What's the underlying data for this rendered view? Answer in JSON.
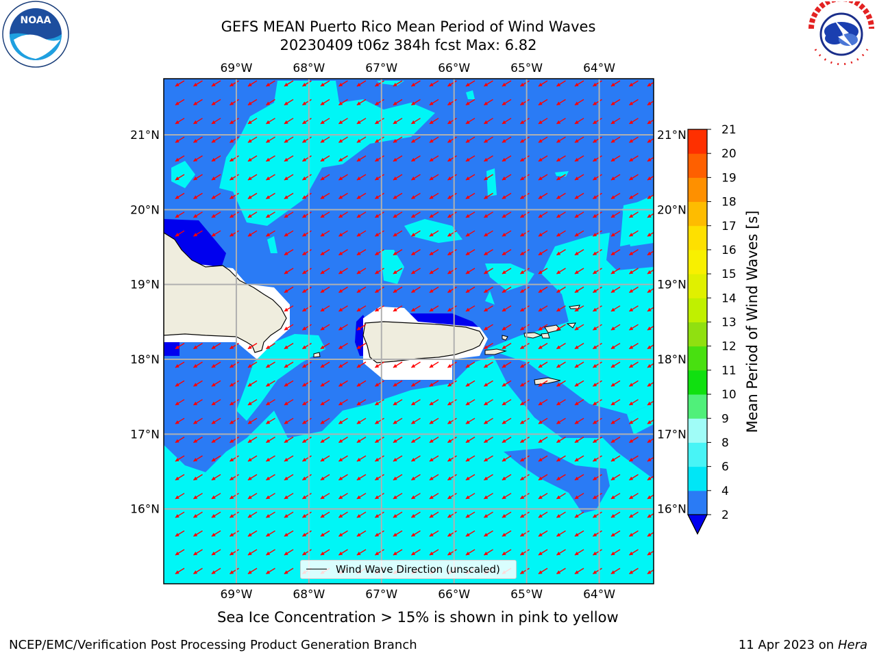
{
  "title": {
    "line1": "GEFS MEAN Puerto Rico Mean Period of Wind Waves",
    "line2": "20230409 t06z 384h fcst   Max: 6.82"
  },
  "logos": {
    "left": "noaa-logo",
    "right": "nws-logo",
    "noaa_text": "NOAA",
    "nws_text": "NATIONAL WEATHER SERVICE"
  },
  "map": {
    "lon_ticks": [
      "69°W",
      "68°W",
      "67°W",
      "66°W",
      "65°W",
      "64°W"
    ],
    "lat_ticks": [
      "21°N",
      "20°N",
      "19°N",
      "18°N",
      "17°N",
      "16°N"
    ],
    "lon_values": [
      -69,
      -68,
      -67,
      -66,
      -65,
      -64
    ],
    "lat_values": [
      21,
      20,
      19,
      18,
      17,
      16
    ],
    "extent": {
      "lon_min": -70,
      "lon_max": -63.25,
      "lat_min": 15,
      "lat_max": 21.75
    },
    "arrow_direction": "toward southwest",
    "land_color": "#efedde",
    "arrow_color": "#ff0000",
    "grid_color": "#b0b0b0"
  },
  "legend": {
    "label": "Wind Wave Direction (unscaled)"
  },
  "colorbar": {
    "label": "Mean Period of Wind Waves [s]",
    "ticks": [
      "2",
      "4",
      "6",
      "8",
      "9",
      "10",
      "11",
      "12",
      "13",
      "14",
      "15",
      "16",
      "17",
      "18",
      "19",
      "20",
      "21"
    ],
    "colors": [
      "#2a7bf5",
      "#00e6f6",
      "#48f4f6",
      "#a0fcf7",
      "#50f07a",
      "#10e010",
      "#48e010",
      "#90e010",
      "#c0f000",
      "#e0f000",
      "#f8f000",
      "#fee000",
      "#febc00",
      "#fe9000",
      "#fe6000",
      "#fe3000",
      "#fe0000"
    ],
    "extend_color": "#0000ee"
  },
  "subcaption": "Sea Ice Concentration > 15% is shown in pink to yellow",
  "footer": {
    "left": "NCEP/EMC/Verification Post Processing Product Generation Branch",
    "date": "11 Apr 2023 on ",
    "host": "Hera"
  }
}
